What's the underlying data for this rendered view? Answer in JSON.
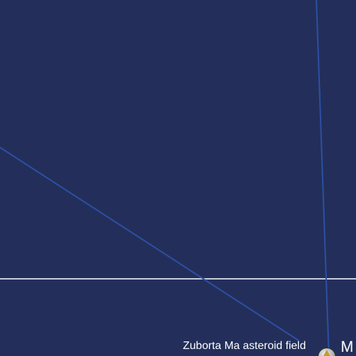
{
  "map": {
    "background_color": "#232f5a",
    "route_color": "#2d4fa5",
    "divider_color": "#c9cfe0",
    "locations": [
      {
        "label": "Zuborta Ma asteroid field",
        "icon": "asteroid-field-icon"
      },
      {
        "label": "M",
        "icon": "location-label-icon"
      }
    ]
  }
}
